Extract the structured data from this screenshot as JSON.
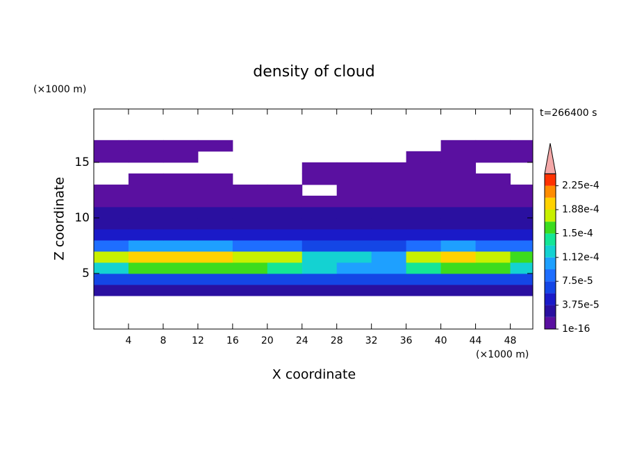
{
  "chart_data": {
    "type": "contour",
    "title": "density of cloud",
    "x_label": "X coordinate",
    "y_label": "Z coordinate",
    "x_unit": "(×1000 m)",
    "y_unit": "(×1000 m)",
    "annotation": "t=266400 s",
    "xlim": [
      0,
      50.6
    ],
    "ylim": [
      0,
      19.8
    ],
    "xticks": [
      4,
      8,
      12,
      16,
      20,
      24,
      28,
      32,
      36,
      40,
      44,
      48
    ],
    "yticks": [
      5,
      10,
      15
    ],
    "field": {
      "x": [
        2,
        6,
        10,
        14,
        18,
        22,
        26,
        30,
        34,
        38,
        42,
        46,
        50
      ],
      "z": [
        3.5,
        4.5,
        5.5,
        6.5,
        7.5,
        8.5,
        9.5,
        10.5,
        11.5,
        12.5,
        13.5,
        14.5,
        15.5,
        16.5
      ],
      "values": [
        [
          3e-05,
          3e-05,
          3e-05,
          3e-05,
          3e-05,
          3e-05,
          3e-05,
          3e-05,
          3e-05,
          3e-05,
          3e-05,
          3e-05,
          3e-05
        ],
        [
          6e-05,
          6e-05,
          6e-05,
          6e-05,
          6e-05,
          6e-05,
          6e-05,
          6e-05,
          6e-05,
          6e-05,
          6e-05,
          6e-05,
          6e-05
        ],
        [
          0.00013,
          0.00015,
          0.00016,
          0.00015,
          0.00015,
          0.00014,
          0.00012,
          0.00011,
          0.0001,
          0.00014,
          0.00016,
          0.00015,
          0.00013
        ],
        [
          0.00017,
          0.00019,
          0.0002,
          0.00019,
          0.00018,
          0.00017,
          0.00013,
          0.00012,
          0.00011,
          0.00018,
          0.0002,
          0.00018,
          0.00016
        ],
        [
          8e-05,
          0.0001,
          0.00011,
          0.0001,
          9e-05,
          8e-05,
          7e-05,
          7e-05,
          6e-05,
          9e-05,
          0.0001,
          9e-05,
          8e-05
        ],
        [
          4e-05,
          4e-05,
          4e-05,
          4e-05,
          4e-05,
          4e-05,
          4e-05,
          4e-05,
          4e-05,
          4e-05,
          4e-05,
          4e-05,
          4e-05
        ],
        [
          3e-05,
          3e-05,
          3e-05,
          3e-05,
          3e-05,
          3e-05,
          3e-05,
          3e-05,
          3e-05,
          3e-05,
          3e-05,
          3e-05,
          3e-05
        ],
        [
          2e-05,
          2e-05,
          2e-05,
          2e-05,
          2e-05,
          2e-05,
          2e-05,
          2e-05,
          2e-05,
          2e-05,
          2e-05,
          2e-05,
          2e-05
        ],
        [
          1e-05,
          1e-05,
          1e-05,
          1e-05,
          1e-05,
          1e-05,
          1e-05,
          1e-05,
          1e-05,
          1e-05,
          1e-05,
          1e-05,
          1e-05
        ],
        [
          5e-06,
          5e-06,
          5e-06,
          5e-06,
          5e-06,
          5e-06,
          null,
          5e-06,
          5e-06,
          5e-06,
          5e-06,
          5e-06,
          5e-06
        ],
        [
          null,
          5e-06,
          5e-06,
          5e-06,
          null,
          null,
          5e-06,
          5e-06,
          5e-06,
          5e-06,
          5e-06,
          5e-06,
          null
        ],
        [
          null,
          null,
          null,
          null,
          null,
          null,
          5e-06,
          5e-06,
          5e-06,
          5e-06,
          5e-06,
          null,
          null
        ],
        [
          5e-06,
          5e-06,
          5e-06,
          null,
          null,
          null,
          null,
          null,
          null,
          5e-06,
          5e-06,
          5e-06,
          5e-06
        ],
        [
          5e-06,
          5e-06,
          5e-06,
          5e-06,
          null,
          null,
          null,
          null,
          null,
          null,
          5e-06,
          5e-06,
          5e-06
        ]
      ]
    },
    "colorbar": {
      "levels": [
        1e-16,
        1.875e-05,
        3.75e-05,
        5.625e-05,
        7.5e-05,
        9.375e-05,
        0.0001125,
        0.00013125,
        0.00015,
        0.00016875,
        0.0001875,
        0.00020625,
        0.000225,
        0.00024375
      ],
      "colors": [
        "#5a10a0",
        "#2a10a0",
        "#1a1ac8",
        "#1446e6",
        "#1e6eff",
        "#1ea0ff",
        "#14d2d2",
        "#14e696",
        "#3cdc1e",
        "#c8f000",
        "#ffd200",
        "#ff8c00",
        "#ff3200"
      ],
      "extend_color": "#f4a8a8",
      "ticks": [
        {
          "value": 1e-16,
          "label": "1e-16"
        },
        {
          "value": 3.75e-05,
          "label": "3.75e-5"
        },
        {
          "value": 7.5e-05,
          "label": "7.5e-5"
        },
        {
          "value": 0.0001125,
          "label": "1.12e-4"
        },
        {
          "value": 0.00015,
          "label": "1.5e-4"
        },
        {
          "value": 0.0001875,
          "label": "1.88e-4"
        },
        {
          "value": 0.000225,
          "label": "2.25e-4"
        }
      ]
    }
  }
}
